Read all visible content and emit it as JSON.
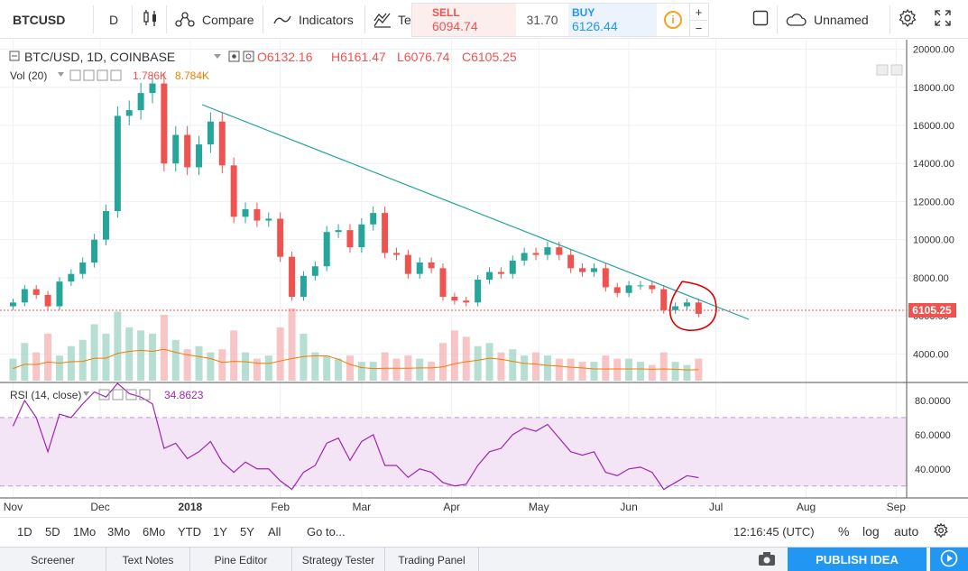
{
  "toolbar": {
    "symbol": "BTCUSD",
    "interval": "D",
    "compare": "Compare",
    "indicators": "Indicators",
    "templates": "Te",
    "sell_label": "SELL",
    "sell_price": "6094.74",
    "spread": "31.70",
    "buy_label": "BUY",
    "buy_price": "6126.44",
    "info": "i",
    "plus": "+",
    "minus": "−",
    "layout_name": "Unnamed"
  },
  "chart_header": {
    "title": "BTC/USD, 1D, COINBASE",
    "open": "O6132.16",
    "high": "H6161.47",
    "low": "L6076.74",
    "close": "C6105.25",
    "vol_label": "Vol (20)",
    "vol_value1": "1.786K",
    "vol_value2": "8.784K",
    "rsi_label": "RSI (14, close)",
    "rsi_value": "34.8623",
    "last_price_tag": "6105.25"
  },
  "colors": {
    "up": "#26a69a",
    "down": "#ef5350",
    "trendline": "#26a69a",
    "rsi_line": "#9c27b0",
    "rsi_band": "#f3e5f5",
    "vol_ma": "#f57c00",
    "annotation": "#e00000",
    "price_line": "#ef5350"
  },
  "chart_data": [
    {
      "type": "candlestick",
      "title": "BTC/USD, 1D, COINBASE",
      "x": [
        "2017-11-01",
        "2017-11-05",
        "2017-11-09",
        "2017-11-13",
        "2017-11-17",
        "2017-11-21",
        "2017-11-25",
        "2017-11-29",
        "2017-12-03",
        "2017-12-07",
        "2017-12-11",
        "2017-12-15",
        "2017-12-19",
        "2017-12-23",
        "2017-12-27",
        "2017-12-31",
        "2018-01-04",
        "2018-01-08",
        "2018-01-12",
        "2018-01-16",
        "2018-01-20",
        "2018-01-24",
        "2018-01-28",
        "2018-02-01",
        "2018-02-05",
        "2018-02-09",
        "2018-02-13",
        "2018-02-17",
        "2018-02-21",
        "2018-02-25",
        "2018-03-01",
        "2018-03-05",
        "2018-03-09",
        "2018-03-13",
        "2018-03-17",
        "2018-03-21",
        "2018-03-25",
        "2018-03-29",
        "2018-04-02",
        "2018-04-06",
        "2018-04-10",
        "2018-04-14",
        "2018-04-18",
        "2018-04-22",
        "2018-04-26",
        "2018-04-30",
        "2018-05-04",
        "2018-05-08",
        "2018-05-12",
        "2018-05-16",
        "2018-05-20",
        "2018-05-24",
        "2018-05-28",
        "2018-06-01",
        "2018-06-05",
        "2018-06-09",
        "2018-06-13",
        "2018-06-17",
        "2018-06-21",
        "2018-06-25"
      ],
      "close": [
        6700,
        7400,
        7100,
        6500,
        7800,
        8200,
        8800,
        10000,
        11500,
        16500,
        16800,
        17700,
        18200,
        14000,
        15500,
        13800,
        15000,
        16200,
        13900,
        11200,
        11600,
        11000,
        11100,
        9100,
        7000,
        8100,
        8600,
        10400,
        10500,
        9600,
        10800,
        11400,
        9300,
        9200,
        8200,
        8800,
        8500,
        7000,
        6800,
        6700,
        7900,
        8300,
        8200,
        8900,
        9300,
        9200,
        9600,
        9200,
        8500,
        8300,
        8500,
        7500,
        7200,
        7600,
        7600,
        7400,
        6300,
        6500,
        6700,
        6105
      ],
      "volume": [
        700,
        1200,
        900,
        1500,
        800,
        1100,
        1300,
        1800,
        1500,
        2200,
        1700,
        1600,
        1500,
        2100,
        1300,
        1000,
        1100,
        900,
        1000,
        1600,
        900,
        700,
        800,
        1700,
        2300,
        1500,
        900,
        800,
        700,
        800,
        600,
        600,
        900,
        700,
        800,
        700,
        600,
        1200,
        1600,
        1400,
        1100,
        1200,
        900,
        1000,
        800,
        900,
        800,
        700,
        700,
        600,
        600,
        800,
        700,
        700,
        600,
        500,
        900,
        600,
        500,
        700
      ],
      "ylim": [
        2500,
        20500
      ],
      "yticks": [
        4000,
        6000,
        8000,
        10000,
        12000,
        14000,
        16000,
        18000,
        20000
      ],
      "ytick_labels": [
        "4000.00",
        "6000.00",
        "8000.00",
        "10000.00",
        "12000.00",
        "14000.00",
        "16000.00",
        "18000.00",
        "20000.00"
      ],
      "xticks": [
        "Nov",
        "Dec",
        "2018",
        "Feb",
        "Mar",
        "Apr",
        "May",
        "Jun",
        "Jul",
        "Aug",
        "Sep"
      ]
    },
    {
      "type": "line",
      "title": "RSI (14, close)",
      "x": [
        "2017-11-01",
        "2017-11-05",
        "2017-11-09",
        "2017-11-13",
        "2017-11-17",
        "2017-11-21",
        "2017-11-25",
        "2017-11-29",
        "2017-12-03",
        "2017-12-07",
        "2017-12-11",
        "2017-12-15",
        "2017-12-19",
        "2017-12-23",
        "2017-12-27",
        "2017-12-31",
        "2018-01-04",
        "2018-01-08",
        "2018-01-12",
        "2018-01-16",
        "2018-01-20",
        "2018-01-24",
        "2018-01-28",
        "2018-02-01",
        "2018-02-05",
        "2018-02-09",
        "2018-02-13",
        "2018-02-17",
        "2018-02-21",
        "2018-02-25",
        "2018-03-01",
        "2018-03-05",
        "2018-03-09",
        "2018-03-13",
        "2018-03-17",
        "2018-03-21",
        "2018-03-25",
        "2018-03-29",
        "2018-04-02",
        "2018-04-06",
        "2018-04-10",
        "2018-04-14",
        "2018-04-18",
        "2018-04-22",
        "2018-04-26",
        "2018-04-30",
        "2018-05-04",
        "2018-05-08",
        "2018-05-12",
        "2018-05-16",
        "2018-05-20",
        "2018-05-24",
        "2018-05-28",
        "2018-06-01",
        "2018-06-05",
        "2018-06-09",
        "2018-06-13",
        "2018-06-17",
        "2018-06-21",
        "2018-06-25"
      ],
      "values": [
        65,
        80,
        70,
        50,
        72,
        70,
        78,
        85,
        82,
        90,
        84,
        82,
        78,
        52,
        55,
        46,
        50,
        56,
        44,
        38,
        44,
        40,
        40,
        33,
        28,
        38,
        42,
        55,
        58,
        45,
        56,
        60,
        42,
        42,
        35,
        40,
        38,
        32,
        30,
        31,
        42,
        50,
        52,
        60,
        64,
        62,
        66,
        58,
        50,
        48,
        50,
        38,
        36,
        40,
        41,
        38,
        28,
        32,
        36,
        34.8623
      ],
      "ylim": [
        23,
        90
      ],
      "yticks": [
        40,
        60,
        80
      ],
      "ytick_labels": [
        "40.0000",
        "60.0000",
        "80.0000"
      ],
      "bands": [
        30,
        70
      ]
    }
  ],
  "timeframes": [
    "1D",
    "5D",
    "1Mo",
    "3Mo",
    "6Mo",
    "YTD",
    "1Y",
    "5Y",
    "All"
  ],
  "goto": "Go to...",
  "clock": "12:16:45 (UTC)",
  "scale_opts": {
    "percent": "%",
    "log": "log",
    "auto": "auto"
  },
  "footer": {
    "tabs": [
      "Screener",
      "Text Notes",
      "Pine Editor",
      "Strategy Tester",
      "Trading Panel"
    ],
    "publish": "PUBLISH IDEA"
  }
}
